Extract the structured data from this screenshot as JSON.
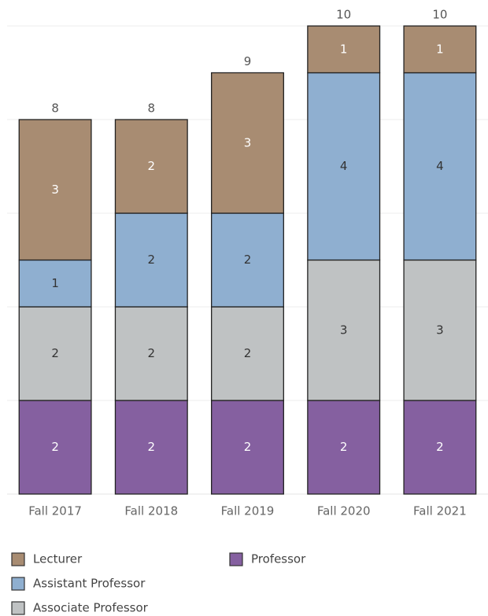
{
  "chart_data": {
    "type": "stacked_bar",
    "categories": [
      "Fall 2017",
      "Fall 2018",
      "Fall 2019",
      "Fall 2020",
      "Fall 2021"
    ],
    "series": [
      {
        "name": "Lecturer",
        "color": "#a88c72",
        "label_color": "#ffffff",
        "values": [
          3,
          2,
          3,
          1,
          1
        ]
      },
      {
        "name": "Assistant Professor",
        "color": "#8fafd0",
        "label_color": "#333333",
        "values": [
          1,
          2,
          2,
          4,
          4
        ]
      },
      {
        "name": "Associate Professor",
        "color": "#bfc2c3",
        "label_color": "#333333",
        "values": [
          2,
          2,
          2,
          3,
          3
        ]
      },
      {
        "name": "Professor",
        "color": "#8560a0",
        "label_color": "#ffffff",
        "values": [
          2,
          2,
          2,
          2,
          2
        ]
      }
    ],
    "totals": [
      8,
      8,
      9,
      10,
      10
    ],
    "ylim": [
      0,
      10
    ],
    "yticks": [
      0,
      2,
      4,
      6,
      8,
      10
    ],
    "grid": true
  }
}
